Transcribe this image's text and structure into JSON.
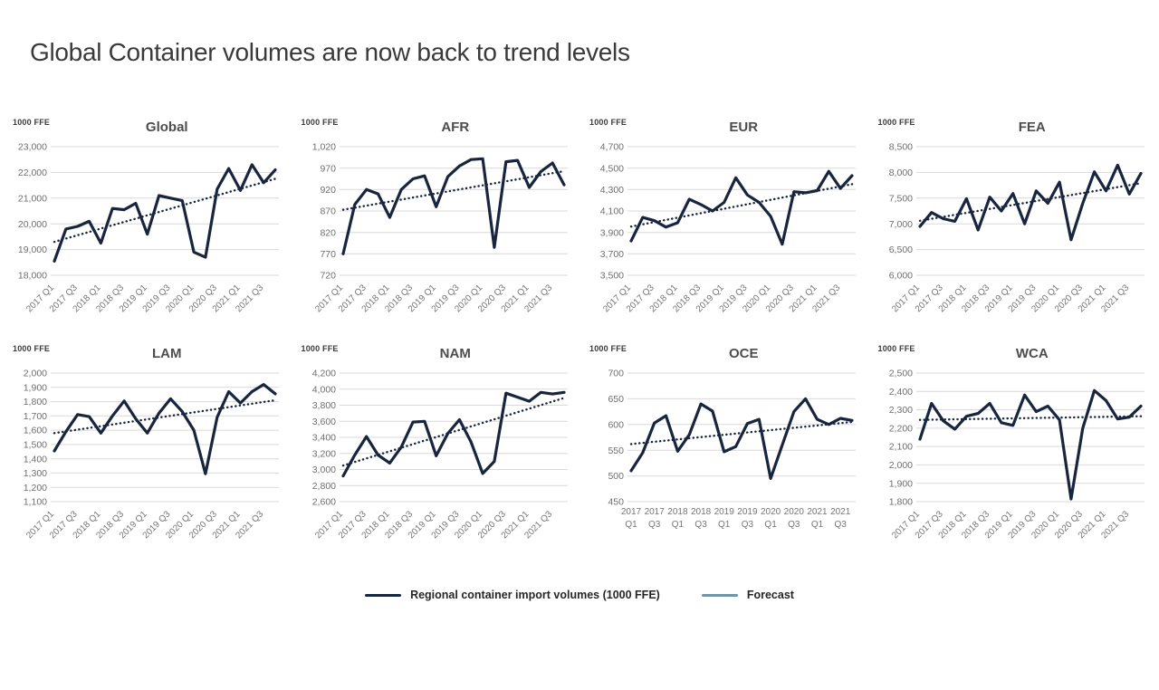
{
  "page": {
    "title": "Global Container volumes are now back to trend levels"
  },
  "legend": {
    "series_label": "Regional container import volumes (1000 FFE)",
    "forecast_label": "Forecast",
    "series_color": "#18253f",
    "forecast_color": "#6f95aa"
  },
  "colors": {
    "gridline": "#d9d9d9",
    "y_tick_text": "#6e6e6e",
    "x_tick_text": "#757575"
  },
  "chart_data": [
    {
      "type": "line",
      "title": "Global",
      "unit": "1000 FFE",
      "ylim": [
        18000,
        23000
      ],
      "ytick_step": 1000,
      "x_labels": [
        "2017 Q1",
        "2017 Q3",
        "2018 Q1",
        "2018 Q3",
        "2019 Q1",
        "2019 Q3",
        "2020 Q1",
        "2020 Q3",
        "2021 Q1",
        "2021 Q3"
      ],
      "x_label_layout": "rotated",
      "values": [
        18550,
        19800,
        19900,
        20100,
        19250,
        20600,
        20550,
        20800,
        19600,
        21100,
        21000,
        20900,
        18900,
        18700,
        21350,
        22150,
        21300,
        22300,
        21600,
        22100
      ],
      "trend": [
        19300,
        21750
      ]
    },
    {
      "type": "line",
      "title": "AFR",
      "unit": "1000 FFE",
      "ylim": [
        720,
        1020
      ],
      "ytick_step": 50,
      "x_labels": [
        "2017 Q1",
        "2017 Q3",
        "2018 Q1",
        "2018 Q3",
        "2019 Q1",
        "2019 Q3",
        "2020 Q1",
        "2020 Q3",
        "2021 Q1",
        "2021 Q3"
      ],
      "x_label_layout": "rotated",
      "values": [
        770,
        885,
        920,
        910,
        855,
        920,
        945,
        952,
        880,
        950,
        975,
        990,
        992,
        785,
        985,
        988,
        925,
        962,
        982,
        931
      ],
      "trend": [
        873,
        963
      ]
    },
    {
      "type": "line",
      "title": "EUR",
      "unit": "1000 FFE",
      "ylim": [
        3500,
        4700
      ],
      "ytick_step": 200,
      "x_labels": [
        "2017 Q1",
        "2017 Q3",
        "2018 Q1",
        "2018 Q3",
        "2019 Q1",
        "2019 Q3",
        "2020 Q1",
        "2020 Q3",
        "2021 Q1",
        "2021 Q3"
      ],
      "x_label_layout": "rotated",
      "values": [
        3820,
        4040,
        4010,
        3950,
        3990,
        4210,
        4160,
        4100,
        4180,
        4410,
        4250,
        4180,
        4050,
        3790,
        4280,
        4270,
        4290,
        4470,
        4310,
        4430
      ],
      "trend": [
        3955,
        4350
      ]
    },
    {
      "type": "line",
      "title": "FEA",
      "unit": "1000 FFE",
      "ylim": [
        6000,
        8500
      ],
      "ytick_step": 500,
      "x_labels": [
        "2017 Q1",
        "2017 Q3",
        "2018 Q1",
        "2018 Q3",
        "2019 Q1",
        "2019 Q3",
        "2020 Q1",
        "2020 Q3",
        "2021 Q1",
        "2021 Q3"
      ],
      "x_label_layout": "rotated",
      "values": [
        6950,
        7220,
        7100,
        7050,
        7490,
        6880,
        7520,
        7250,
        7590,
        7000,
        7640,
        7400,
        7810,
        6690,
        7400,
        8010,
        7640,
        8140,
        7580,
        7980
      ],
      "trend": [
        7060,
        7790
      ]
    },
    {
      "type": "line",
      "title": "LAM",
      "unit": "1000 FFE",
      "ylim": [
        1100,
        2000
      ],
      "ytick_step": 100,
      "x_labels": [
        "2017 Q1",
        "2017 Q3",
        "2018 Q1",
        "2018 Q3",
        "2019 Q1",
        "2019 Q3",
        "2020 Q1",
        "2020 Q3",
        "2021 Q1",
        "2021 Q3"
      ],
      "x_label_layout": "rotated",
      "values": [
        1455,
        1590,
        1710,
        1695,
        1580,
        1700,
        1805,
        1680,
        1580,
        1720,
        1820,
        1730,
        1600,
        1295,
        1690,
        1870,
        1790,
        1870,
        1920,
        1855
      ],
      "trend": [
        1580,
        1810
      ]
    },
    {
      "type": "line",
      "title": "NAM",
      "unit": "1000 FFE",
      "ylim": [
        2600,
        4200
      ],
      "ytick_step": 200,
      "x_labels": [
        "2017 Q1",
        "2017 Q3",
        "2018 Q1",
        "2018 Q3",
        "2019 Q1",
        "2019 Q3",
        "2020 Q1",
        "2020 Q3",
        "2021 Q1",
        "2021 Q3"
      ],
      "x_label_layout": "rotated",
      "values": [
        2920,
        3180,
        3410,
        3180,
        3080,
        3280,
        3590,
        3600,
        3170,
        3450,
        3620,
        3340,
        2950,
        3100,
        3950,
        3900,
        3850,
        3960,
        3940,
        3960
      ],
      "trend": [
        3050,
        3890
      ]
    },
    {
      "type": "line",
      "title": "OCE",
      "unit": "1000 FFE",
      "ylim": [
        450,
        700
      ],
      "ytick_step": 50,
      "x_labels": [
        "2017 Q1",
        "2017 Q3",
        "2018 Q1",
        "2018 Q3",
        "2019 Q1",
        "2019 Q3",
        "2020 Q1",
        "2020 Q3",
        "2021 Q1",
        "2021 Q3"
      ],
      "x_label_layout": "two-line",
      "values": [
        510,
        545,
        603,
        617,
        548,
        580,
        640,
        626,
        547,
        557,
        602,
        610,
        495,
        560,
        625,
        650,
        610,
        600,
        612,
        608
      ],
      "trend": [
        562,
        605
      ]
    },
    {
      "type": "line",
      "title": "WCA",
      "unit": "1000 FFE",
      "ylim": [
        1800,
        2500
      ],
      "ytick_step": 100,
      "x_labels": [
        "2017 Q1",
        "2017 Q3",
        "2018 Q1",
        "2018 Q3",
        "2019 Q1",
        "2019 Q3",
        "2020 Q1",
        "2020 Q3",
        "2021 Q1",
        "2021 Q3"
      ],
      "x_label_layout": "rotated",
      "values": [
        2140,
        2335,
        2240,
        2195,
        2265,
        2280,
        2335,
        2230,
        2215,
        2380,
        2290,
        2320,
        2245,
        1815,
        2200,
        2405,
        2350,
        2250,
        2260,
        2320
      ],
      "trend": [
        2245,
        2265
      ]
    }
  ]
}
